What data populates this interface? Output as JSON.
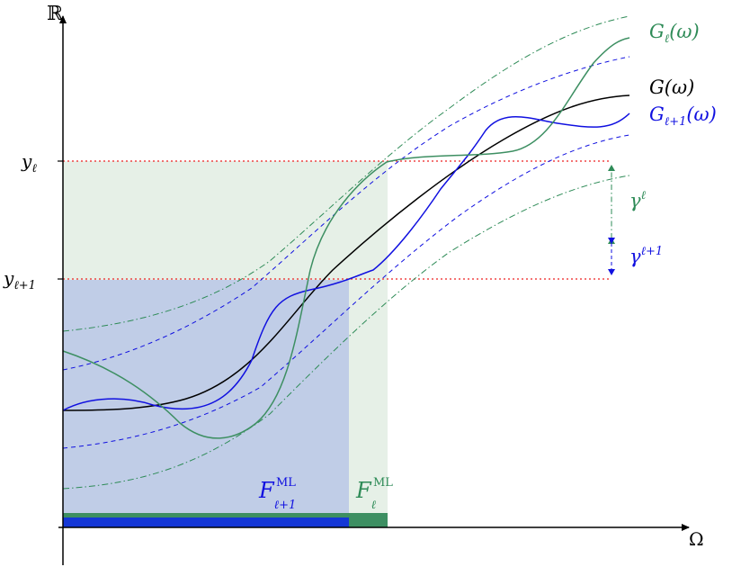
{
  "axes": {
    "y_axis_label": "ℝ",
    "x_axis_label": "Ω"
  },
  "levels": {
    "y_l": {
      "base": "y",
      "sub": "ℓ"
    },
    "y_l1": {
      "base": "y",
      "sub": "ℓ+1"
    }
  },
  "curves": {
    "G": {
      "text": "G(ω)",
      "color": "#000000"
    },
    "G_l": {
      "base": "G",
      "sub": "ℓ",
      "arg": "(ω)",
      "color": "#2e8b57"
    },
    "G_l1": {
      "base": "G",
      "sub": "ℓ+1",
      "arg": "(ω)",
      "color": "#1010e0"
    }
  },
  "tolerances": {
    "gamma_l": {
      "base": "γ",
      "sup": "ℓ",
      "color": "#2e8b57"
    },
    "gamma_l1": {
      "base": "γ",
      "sup": "ℓ+1",
      "color": "#1010e0"
    }
  },
  "regions": {
    "F_l1": {
      "base": "F",
      "sub": "ℓ+1",
      "sup": "ML",
      "fill": "#b9c7e6",
      "bar": "#1437d6"
    },
    "F_l": {
      "base": "F",
      "sub": "ℓ",
      "sup": "ML",
      "fill": "#dbe9dd",
      "bar": "#3d8f62"
    }
  },
  "threshold_line_color": "#ee2222"
}
